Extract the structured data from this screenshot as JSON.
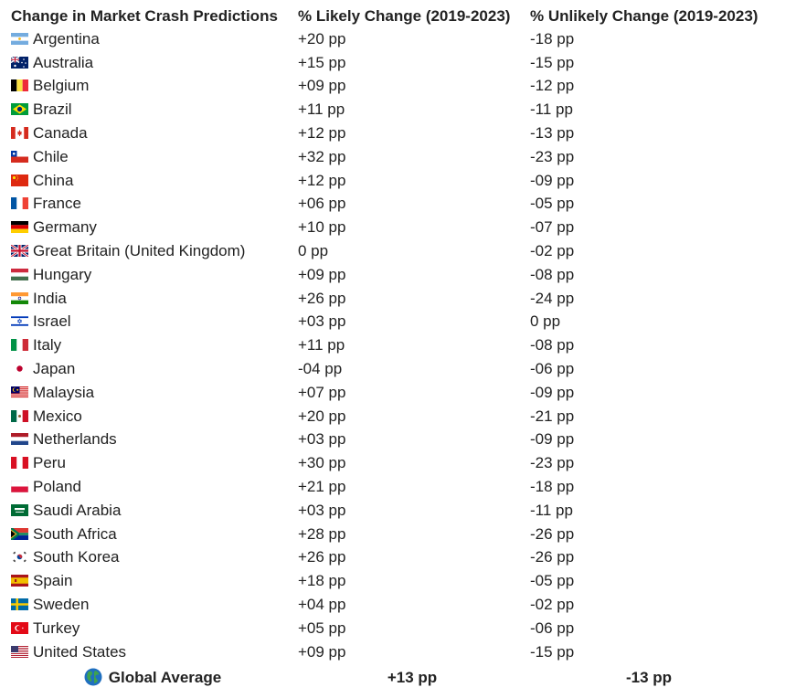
{
  "headers": {
    "country": "Change in Market Crash Predictions",
    "likely": "% Likely Change (2019-2023)",
    "unlikely": "% Unlikely Change (2019-2023)"
  },
  "rows": [
    {
      "country": "Argentina",
      "likely": "+20 pp",
      "unlikely": "-18 pp",
      "flag": "argentina-flag-icon"
    },
    {
      "country": "Australia",
      "likely": "+15 pp",
      "unlikely": "-15 pp",
      "flag": "australia-flag-icon"
    },
    {
      "country": "Belgium",
      "likely": "+09 pp",
      "unlikely": "-12 pp",
      "flag": "belgium-flag-icon"
    },
    {
      "country": "Brazil",
      "likely": "+11 pp",
      "unlikely": "-11 pp",
      "flag": "brazil-flag-icon"
    },
    {
      "country": "Canada",
      "likely": "+12 pp",
      "unlikely": "-13 pp",
      "flag": "canada-flag-icon"
    },
    {
      "country": "Chile",
      "likely": "+32 pp",
      "unlikely": "-23 pp",
      "flag": "chile-flag-icon"
    },
    {
      "country": "China",
      "likely": "+12 pp",
      "unlikely": "-09 pp",
      "flag": "china-flag-icon"
    },
    {
      "country": "France",
      "likely": "+06 pp",
      "unlikely": "-05 pp",
      "flag": "france-flag-icon"
    },
    {
      "country": "Germany",
      "likely": "+10 pp",
      "unlikely": "-07 pp",
      "flag": "germany-flag-icon"
    },
    {
      "country": "Great Britain (United Kingdom)",
      "likely": "0 pp",
      "unlikely": "-02 pp",
      "flag": "uk-flag-icon"
    },
    {
      "country": "Hungary",
      "likely": "+09 pp",
      "unlikely": "-08 pp",
      "flag": "hungary-flag-icon"
    },
    {
      "country": "India",
      "likely": "+26 pp",
      "unlikely": "-24 pp",
      "flag": "india-flag-icon"
    },
    {
      "country": "Israel",
      "likely": "+03 pp",
      "unlikely": "0 pp",
      "flag": "israel-flag-icon"
    },
    {
      "country": "Italy",
      "likely": "+11 pp",
      "unlikely": "-08 pp",
      "flag": "italy-flag-icon"
    },
    {
      "country": "Japan",
      "likely": "-04 pp",
      "unlikely": "-06 pp",
      "flag": "japan-flag-icon"
    },
    {
      "country": "Malaysia",
      "likely": "+07 pp",
      "unlikely": "-09 pp",
      "flag": "malaysia-flag-icon"
    },
    {
      "country": "Mexico",
      "likely": "+20 pp",
      "unlikely": "-21 pp",
      "flag": "mexico-flag-icon"
    },
    {
      "country": "Netherlands",
      "likely": "+03 pp",
      "unlikely": "-09 pp",
      "flag": "netherlands-flag-icon"
    },
    {
      "country": "Peru",
      "likely": "+30 pp",
      "unlikely": "-23 pp",
      "flag": "peru-flag-icon"
    },
    {
      "country": "Poland",
      "likely": "+21 pp",
      "unlikely": "-18 pp",
      "flag": "poland-flag-icon"
    },
    {
      "country": "Saudi Arabia",
      "likely": "+03 pp",
      "unlikely": "-11 pp",
      "flag": "saudi-arabia-flag-icon"
    },
    {
      "country": "South Africa",
      "likely": "+28 pp",
      "unlikely": "-26 pp",
      "flag": "south-africa-flag-icon"
    },
    {
      "country": "South Korea",
      "likely": "+26 pp",
      "unlikely": "-26 pp",
      "flag": "south-korea-flag-icon"
    },
    {
      "country": "Spain",
      "likely": "+18 pp",
      "unlikely": "-05 pp",
      "flag": "spain-flag-icon"
    },
    {
      "country": "Sweden",
      "likely": "+04 pp",
      "unlikely": "-02 pp",
      "flag": "sweden-flag-icon"
    },
    {
      "country": "Turkey",
      "likely": "+05 pp",
      "unlikely": "-06 pp",
      "flag": "turkey-flag-icon"
    },
    {
      "country": "United States",
      "likely": "+09 pp",
      "unlikely": "-15 pp",
      "flag": "usa-flag-icon"
    }
  ],
  "average": {
    "label": "Global Average",
    "likely": "+13 pp",
    "unlikely": "-13 pp",
    "icon": "globe-icon"
  }
}
